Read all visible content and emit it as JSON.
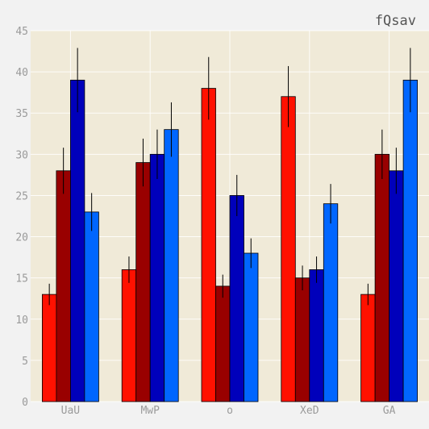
{
  "chart_data": {
    "type": "bar",
    "title": "fQsav",
    "xlabel": "",
    "ylabel": "",
    "categories": [
      "UaU",
      "MwP",
      "o",
      "XeD",
      "GA"
    ],
    "ylim": [
      0,
      45
    ],
    "yticks": [
      0,
      5,
      10,
      15,
      20,
      25,
      30,
      35,
      40,
      45
    ],
    "grid": true,
    "background": "#f0ead8",
    "series": [
      {
        "color": "#ff1100",
        "values": [
          13,
          16,
          38,
          37,
          13
        ],
        "errors": [
          1.3,
          1.6,
          3.8,
          3.7,
          1.3
        ]
      },
      {
        "color": "#990000",
        "values": [
          28,
          29,
          14,
          15,
          30
        ],
        "errors": [
          2.8,
          2.9,
          1.4,
          1.5,
          3.0
        ]
      },
      {
        "color": "#0000bb",
        "values": [
          39,
          30,
          25,
          16,
          28
        ],
        "errors": [
          3.9,
          3.0,
          2.5,
          1.6,
          2.8
        ]
      },
      {
        "color": "#0066ff",
        "values": [
          23,
          33,
          18,
          24,
          39
        ],
        "errors": [
          2.3,
          3.3,
          1.8,
          2.4,
          3.9
        ]
      }
    ]
  }
}
